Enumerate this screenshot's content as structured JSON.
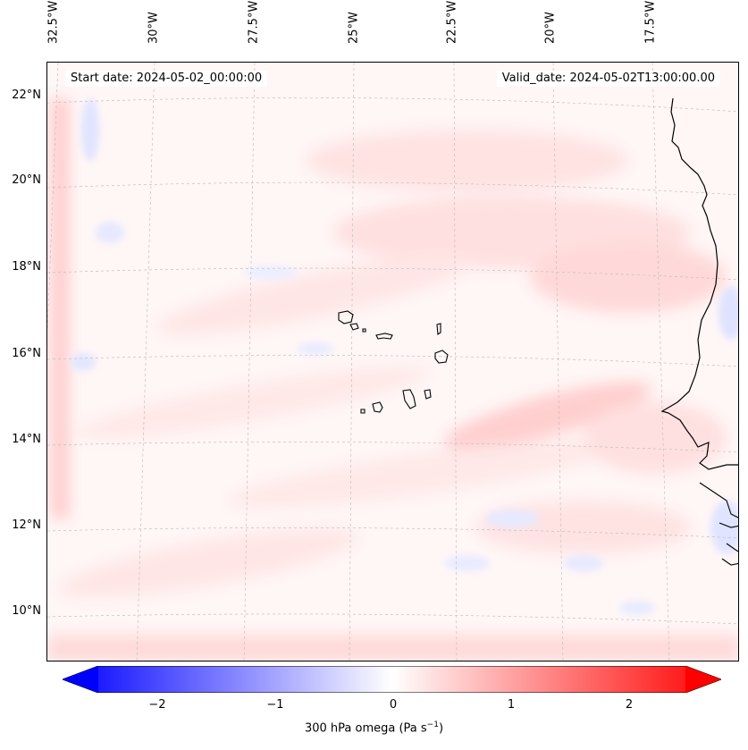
{
  "map": {
    "lon_labels": [
      "32.5°W",
      "30°W",
      "27.5°W",
      "25°W",
      "22.5°W",
      "20°W",
      "17.5°W"
    ],
    "lat_labels": [
      "22°N",
      "20°N",
      "18°N",
      "16°N",
      "14°N",
      "12°N",
      "10°N"
    ],
    "start_date": "Start date: 2024-05-02_00:00:00",
    "valid_date": "Valid_date: 2024-05-02T13:00:00.00",
    "field": "300 hPa omega",
    "colors": {
      "negative": "#0000ff",
      "zero": "#ffffff",
      "positive": "#ff0000"
    }
  },
  "colorbar": {
    "ticks": [
      "−2",
      "−1",
      "0",
      "1",
      "2"
    ],
    "label": "300 hPa omega (Pa s",
    "label_sup": "−1",
    "label_end": ")",
    "range": [
      -2.6,
      2.6
    ]
  }
}
